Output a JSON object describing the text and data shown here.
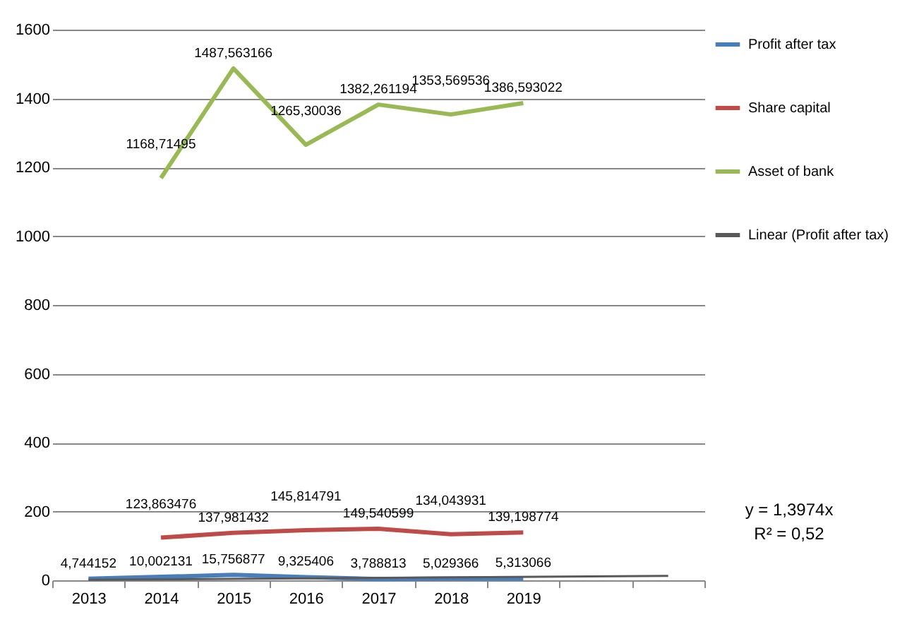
{
  "chart_data": {
    "type": "line",
    "categories": [
      "2013",
      "2014",
      "2015",
      "2016",
      "2017",
      "2018",
      "2019",
      null,
      null
    ],
    "ylim": [
      0,
      1600
    ],
    "yticks": [
      0,
      200,
      400,
      600,
      800,
      1000,
      1200,
      1400,
      1600
    ],
    "grid": "y",
    "legend": "right",
    "marker": "none",
    "annotations": [
      "y = 1,3974x",
      "R² = 0,52"
    ],
    "series": [
      {
        "name": "Profit after tax",
        "color": "#4a7ebb",
        "values": [
          4.744152,
          10.002131,
          15.756877,
          9.325406,
          3.788813,
          5.029366,
          5.313066,
          null,
          null
        ],
        "value_labels": [
          "4,744152",
          "10,002131",
          "15,756877",
          "9,325406",
          "3,788813",
          "5,029366",
          "5,313066",
          null,
          null
        ]
      },
      {
        "name": "Share capital",
        "color": "#be4b48",
        "values": [
          null,
          123.863476,
          137.981432,
          145.814791,
          149.540599,
          134.043931,
          139.198774,
          null,
          null
        ],
        "value_labels": [
          null,
          "123,863476",
          "137,981432",
          "145,814791",
          "149,540599",
          "134,043931",
          "139,198774",
          null,
          null
        ]
      },
      {
        "name": "Asset of bank",
        "color": "#98b954",
        "values": [
          null,
          1168.71495,
          1487.563166,
          1265.30036,
          1382.261194,
          1353.569536,
          1386.593022,
          null,
          null
        ],
        "value_labels": [
          null,
          "1168,71495",
          "1487,563166",
          "1265,30036",
          "1382,261194",
          "1353,569536",
          "1386,593022",
          null,
          null
        ]
      },
      {
        "name": "Linear (Profit after tax)",
        "type": "line",
        "color": "#595959",
        "values": [
          1.4,
          null,
          null,
          null,
          null,
          null,
          null,
          null,
          12.6
        ]
      }
    ]
  }
}
